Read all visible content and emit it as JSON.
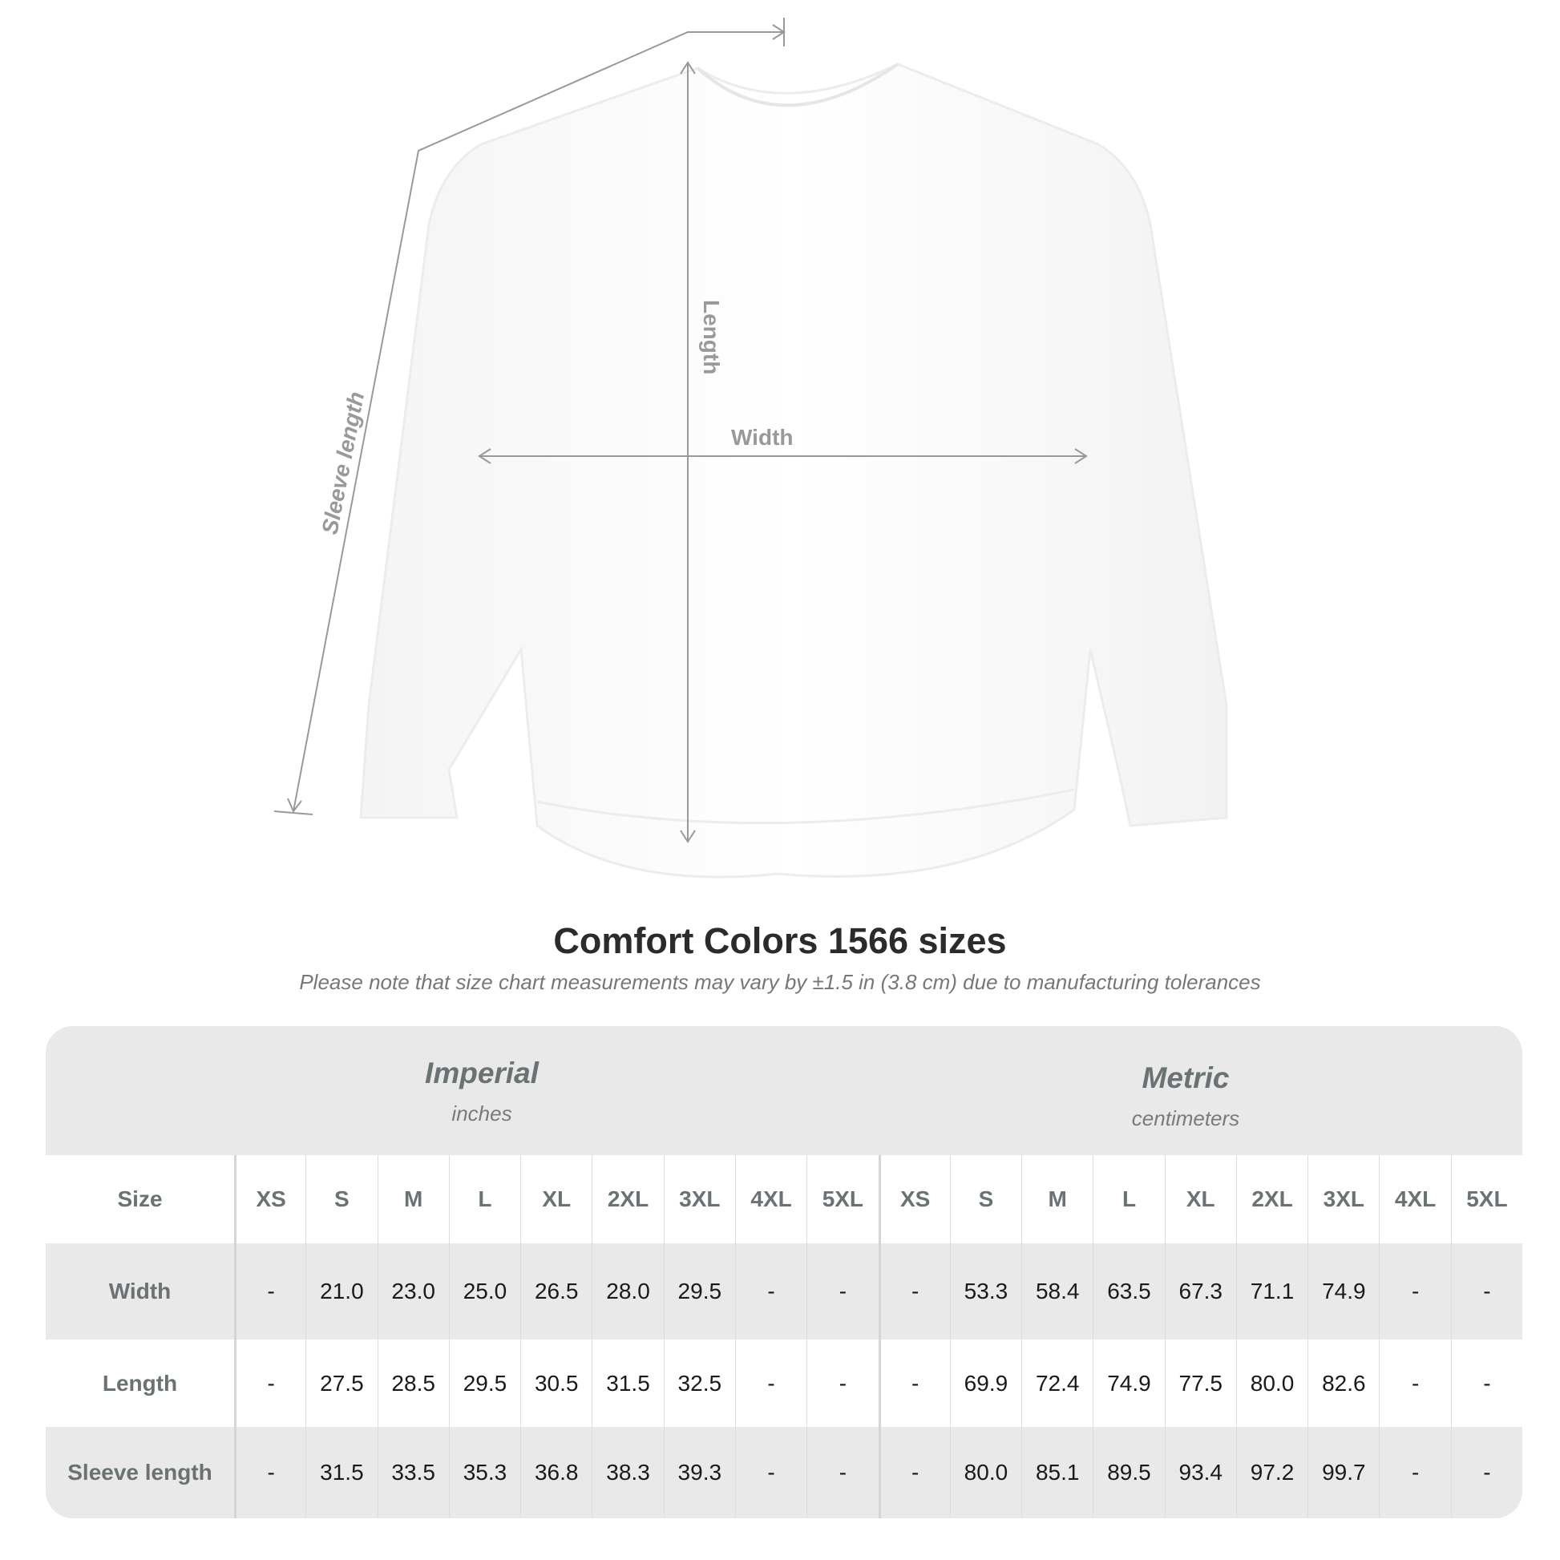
{
  "diagram": {
    "labels": {
      "sleeve": "Sleeve length",
      "length": "Length",
      "width": "Width"
    }
  },
  "title": "Comfort Colors 1566 sizes",
  "subtitle": "Please note that size chart measurements may vary by ±1.5 in (3.8 cm) due to manufacturing tolerances",
  "table": {
    "groups": [
      {
        "name": "Imperial",
        "unit": "inches"
      },
      {
        "name": "Metric",
        "unit": "centimeters"
      }
    ],
    "size_label": "Size",
    "sizes": [
      "XS",
      "S",
      "M",
      "L",
      "XL",
      "2XL",
      "3XL",
      "4XL",
      "5XL"
    ],
    "rows": [
      {
        "label": "Width",
        "imperial": [
          "-",
          "21.0",
          "23.0",
          "25.0",
          "26.5",
          "28.0",
          "29.5",
          "-",
          "-"
        ],
        "metric": [
          "-",
          "53.3",
          "58.4",
          "63.5",
          "67.3",
          "71.1",
          "74.9",
          "-",
          "-"
        ]
      },
      {
        "label": "Length",
        "imperial": [
          "-",
          "27.5",
          "28.5",
          "29.5",
          "30.5",
          "31.5",
          "32.5",
          "-",
          "-"
        ],
        "metric": [
          "-",
          "69.9",
          "72.4",
          "74.9",
          "77.5",
          "80.0",
          "82.6",
          "-",
          "-"
        ]
      },
      {
        "label": "Sleeve length",
        "imperial": [
          "-",
          "31.5",
          "33.5",
          "35.3",
          "36.8",
          "38.3",
          "39.3",
          "-",
          "-"
        ],
        "metric": [
          "-",
          "80.0",
          "85.1",
          "89.5",
          "93.4",
          "97.2",
          "99.7",
          "-",
          "-"
        ]
      }
    ]
  },
  "colors": {
    "header_bg": "#e9e9e9",
    "label_text": "#6b7273",
    "line": "#999999"
  }
}
